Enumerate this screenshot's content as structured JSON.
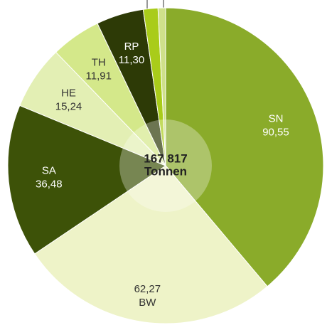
{
  "chart_data": {
    "type": "pie",
    "center_label": [
      "167 817",
      "Tonnen"
    ],
    "categories": [
      "SN",
      "BW",
      "SA",
      "HE",
      "TH",
      "RP",
      null,
      null
    ],
    "values": [
      90.55,
      62.27,
      36.48,
      15.24,
      11.91,
      11.3,
      3.5,
      1.8
    ],
    "value_labels": [
      "90,55",
      "62,27",
      "36,48",
      "15,24",
      "11,91",
      "11,30",
      null,
      null
    ],
    "colors": [
      "#8aab2a",
      "#eef3c8",
      "#3d5208",
      "#e3efb4",
      "#d4e88a",
      "#2d3a06",
      "#a9cc1a",
      "#cfe08a"
    ]
  }
}
